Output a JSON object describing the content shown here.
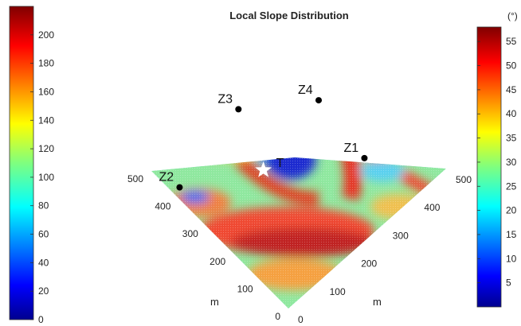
{
  "chart_data": {
    "type": "heatmap",
    "title": "Local Slope Distribution",
    "x_axis": {
      "label": "m",
      "ticks": [
        0,
        100,
        200,
        300,
        400,
        500
      ]
    },
    "y_axis": {
      "label": "m",
      "ticks": [
        0,
        100,
        200,
        300,
        400,
        500
      ]
    },
    "colorbar_left": {
      "label": "",
      "range": [
        0,
        220
      ],
      "ticks": [
        0,
        20,
        40,
        60,
        80,
        100,
        120,
        140,
        160,
        180,
        200
      ]
    },
    "colorbar_right": {
      "label": "(°)",
      "range": [
        0,
        58
      ],
      "ticks": [
        5,
        10,
        15,
        20,
        25,
        30,
        35,
        40,
        45,
        50,
        55
      ]
    },
    "colormap": "jet",
    "markers": [
      {
        "name": "T",
        "symbol": "star",
        "x": 190,
        "y": 310
      },
      {
        "name": "Z1",
        "symbol": "dot",
        "x": 380,
        "y": 160
      },
      {
        "name": "Z2",
        "symbol": "dot",
        "x": 20,
        "y": 420
      },
      {
        "name": "Z3",
        "symbol": "dot",
        "x": 250,
        "y": 470
      },
      {
        "name": "Z4",
        "symbol": "dot",
        "x": 400,
        "y": 350
      }
    ]
  }
}
